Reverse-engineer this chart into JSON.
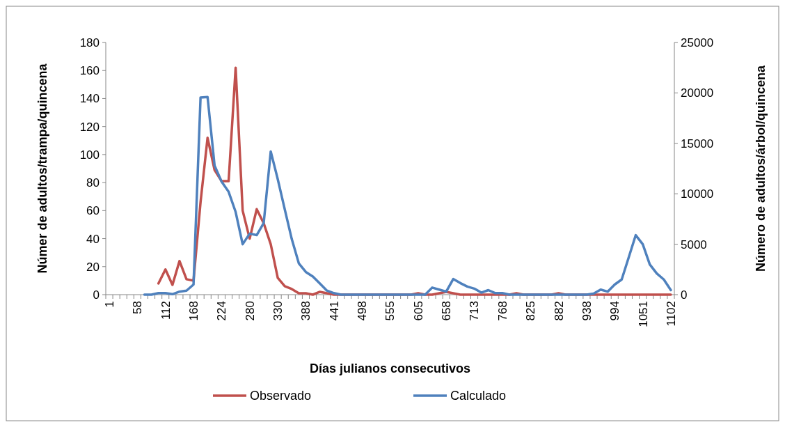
{
  "chart_data": {
    "type": "line",
    "xlabel": "Días julianos consecutivos",
    "ylabel": "Númer de adultos/trampa/quincena",
    "y2label": "Número de adultos/árbol/quincena",
    "categories": [
      "1",
      null,
      null,
      null,
      "58",
      null,
      null,
      null,
      "112",
      null,
      null,
      null,
      "168",
      null,
      null,
      null,
      "224",
      null,
      null,
      null,
      "280",
      null,
      null,
      null,
      "330",
      null,
      null,
      null,
      "388",
      null,
      null,
      null,
      "441",
      null,
      null,
      null,
      "498",
      null,
      null,
      null,
      "555",
      null,
      null,
      null,
      "605",
      null,
      null,
      null,
      "658",
      null,
      null,
      null,
      "713",
      null,
      null,
      null,
      "768",
      null,
      null,
      null,
      "825",
      null,
      null,
      null,
      "882",
      null,
      null,
      null,
      "938",
      null,
      null,
      null,
      "994",
      null,
      null,
      null,
      "1051",
      null,
      null,
      null,
      "1102"
    ],
    "series": [
      {
        "name": "Observado",
        "color": "#c0504d",
        "values": [
          null,
          null,
          null,
          null,
          null,
          null,
          null,
          8,
          18,
          7,
          24,
          11,
          10,
          66,
          112,
          89,
          81,
          81,
          162,
          60,
          40,
          61,
          51,
          36,
          12,
          6,
          4,
          1,
          1,
          0,
          2,
          1,
          0,
          0,
          0,
          0,
          0,
          0,
          0,
          0,
          0,
          0,
          0,
          0,
          1,
          0,
          0,
          1,
          2,
          1,
          0,
          0,
          0,
          0,
          0,
          0,
          0,
          0,
          1,
          0,
          0,
          0,
          0,
          0,
          1,
          0,
          0,
          0,
          0,
          0,
          0,
          0,
          0,
          0,
          0,
          0,
          0,
          0,
          0,
          0,
          0
        ]
      },
      {
        "name": "Calculado",
        "color": "#4f81bd",
        "axis": "y2",
        "values": [
          null,
          null,
          null,
          null,
          null,
          0,
          0,
          150,
          150,
          50,
          300,
          400,
          1000,
          19550,
          19600,
          12800,
          11200,
          10200,
          8200,
          5000,
          6050,
          5900,
          7100,
          14200,
          11450,
          8450,
          5500,
          3100,
          2250,
          1800,
          1100,
          400,
          150,
          0,
          0,
          0,
          0,
          0,
          0,
          0,
          0,
          0,
          0,
          0,
          0,
          0,
          700,
          500,
          300,
          1550,
          1150,
          800,
          600,
          200,
          450,
          150,
          150,
          0,
          0,
          0,
          0,
          0,
          0,
          0,
          0,
          0,
          0,
          0,
          0,
          100,
          500,
          300,
          1000,
          1500,
          3700,
          5900,
          5000,
          3000,
          2100,
          1500,
          450
        ]
      }
    ],
    "ylim": [
      0,
      180
    ],
    "yticks": [
      0,
      20,
      40,
      60,
      80,
      100,
      120,
      140,
      160,
      180
    ],
    "y2lim": [
      0,
      25000
    ],
    "y2ticks": [
      0,
      5000,
      10000,
      15000,
      20000,
      25000
    ],
    "legend": "bottom",
    "grid": false
  }
}
